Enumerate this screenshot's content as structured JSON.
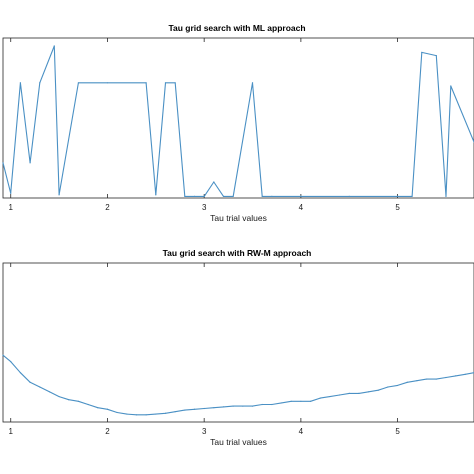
{
  "chart_data": [
    {
      "type": "line",
      "title": "Tau grid search with ML approach",
      "xlabel": "Tau trial values",
      "ylabel": "",
      "xlim": [
        0.92,
        5.79
      ],
      "ylim": [
        0,
        1
      ],
      "xticks": [
        1,
        2,
        3,
        4,
        5
      ],
      "xtick_labels": [
        "1",
        "2",
        "3",
        "4",
        "5"
      ],
      "grid": false,
      "series": [
        {
          "color": "#4a90c4",
          "x": [
            0.92,
            1.0,
            1.1,
            1.2,
            1.3,
            1.45,
            1.5,
            1.7,
            2.0,
            2.4,
            2.5,
            2.6,
            2.7,
            2.8,
            2.9,
            3.0,
            3.1,
            3.2,
            3.3,
            3.5,
            3.6,
            3.7,
            4.0,
            4.5,
            5.0,
            5.15,
            5.25,
            5.4,
            5.5,
            5.55,
            5.79
          ],
          "y": [
            0.22,
            0.03,
            0.72,
            0.22,
            0.72,
            0.95,
            0.02,
            0.72,
            0.72,
            0.72,
            0.02,
            0.72,
            0.72,
            0.01,
            0.01,
            0.01,
            0.1,
            0.01,
            0.01,
            0.72,
            0.01,
            0.01,
            0.01,
            0.01,
            0.01,
            0.01,
            0.91,
            0.89,
            0.01,
            0.7,
            0.35
          ]
        }
      ]
    },
    {
      "type": "line",
      "title": "Tau grid search with RW-M approach",
      "xlabel": "Tau trial values",
      "ylabel": "",
      "xlim": [
        0.92,
        5.79
      ],
      "ylim": [
        0,
        1
      ],
      "xticks": [
        1,
        2,
        3,
        4,
        5
      ],
      "xtick_labels": [
        "1",
        "2",
        "3",
        "4",
        "5"
      ],
      "grid": false,
      "series": [
        {
          "color": "#4a90c4",
          "x": [
            0.92,
            1.0,
            1.1,
            1.2,
            1.3,
            1.4,
            1.5,
            1.6,
            1.7,
            1.8,
            1.9,
            2.0,
            2.1,
            2.2,
            2.3,
            2.4,
            2.5,
            2.6,
            2.7,
            2.8,
            2.9,
            3.0,
            3.1,
            3.2,
            3.3,
            3.4,
            3.5,
            3.6,
            3.7,
            3.8,
            3.9,
            4.0,
            4.1,
            4.2,
            4.3,
            4.4,
            4.5,
            4.6,
            4.7,
            4.8,
            4.9,
            5.0,
            5.1,
            5.2,
            5.3,
            5.4,
            5.5,
            5.6,
            5.7,
            5.79
          ],
          "y": [
            0.42,
            0.38,
            0.31,
            0.25,
            0.22,
            0.19,
            0.16,
            0.14,
            0.13,
            0.11,
            0.09,
            0.08,
            0.06,
            0.05,
            0.045,
            0.045,
            0.05,
            0.055,
            0.065,
            0.075,
            0.08,
            0.085,
            0.09,
            0.095,
            0.1,
            0.1,
            0.1,
            0.11,
            0.11,
            0.12,
            0.13,
            0.13,
            0.13,
            0.15,
            0.16,
            0.17,
            0.18,
            0.18,
            0.19,
            0.2,
            0.22,
            0.23,
            0.25,
            0.26,
            0.27,
            0.27,
            0.28,
            0.29,
            0.3,
            0.31
          ]
        }
      ]
    }
  ]
}
